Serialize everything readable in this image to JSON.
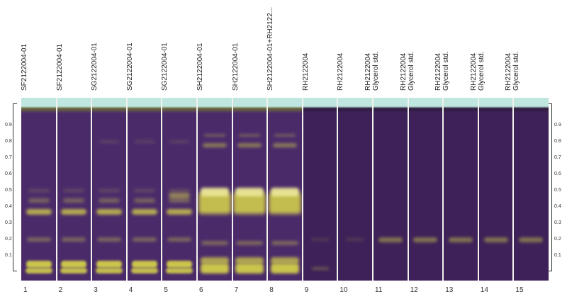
{
  "lanes": [
    {
      "number": "1",
      "label": "SF2122004-01",
      "type": "sf"
    },
    {
      "number": "2",
      "label": "SF2122004-01",
      "type": "sf"
    },
    {
      "number": "3",
      "label": "SG2122004-01",
      "type": "sg"
    },
    {
      "number": "4",
      "label": "SG2122004-01",
      "type": "sg"
    },
    {
      "number": "5",
      "label": "SG2122004-01",
      "type": "sg"
    },
    {
      "number": "6",
      "label": "SH2122004-01",
      "type": "sh"
    },
    {
      "number": "7",
      "label": "SH2122004-01",
      "type": "sh"
    },
    {
      "number": "8",
      "label": "SH2122004-01+RH2122...",
      "type": "sh"
    },
    {
      "number": "9",
      "label": "RH2122004",
      "type": "rh"
    },
    {
      "number": "10",
      "label": "RH2122004",
      "type": "rh"
    },
    {
      "number": "11",
      "label": "RH2122004\nGlycerol std.",
      "type": "gly"
    },
    {
      "number": "12",
      "label": "RH2122004\nGlycerol std.",
      "type": "gly"
    },
    {
      "number": "13",
      "label": "RH2122004\nGlycerol std.",
      "type": "gly"
    },
    {
      "number": "14",
      "label": "RH2122004\nGlycerol std.",
      "type": "gly"
    },
    {
      "number": "15",
      "label": "RH2122004\nGlycerol std.",
      "type": "gly"
    }
  ],
  "rf_scale": [
    "0.9",
    "0.8",
    "0.7",
    "0.6",
    "0.5",
    "0.4",
    "0.3",
    "0.2",
    "0.1"
  ],
  "colors": {
    "plate_purple": "#4b2a6a",
    "plate_purple_dark": "#3e2158",
    "solvent_front": "#bfe6df",
    "band_yellow": "#d9d64a",
    "band_bright": "#f2f09a"
  }
}
